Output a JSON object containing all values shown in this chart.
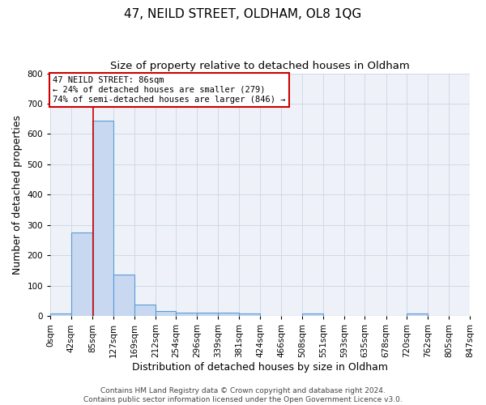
{
  "title": "47, NEILD STREET, OLDHAM, OL8 1QG",
  "subtitle": "Size of property relative to detached houses in Oldham",
  "xlabel": "Distribution of detached houses by size in Oldham",
  "ylabel": "Number of detached properties",
  "bin_edges": [
    0,
    42,
    85,
    127,
    169,
    212,
    254,
    296,
    339,
    381,
    424,
    466,
    508,
    551,
    593,
    635,
    678,
    720,
    762,
    805,
    847
  ],
  "bin_counts": [
    8,
    277,
    645,
    138,
    37,
    18,
    12,
    11,
    11,
    8,
    0,
    0,
    8,
    0,
    0,
    0,
    0,
    8,
    0,
    0
  ],
  "bar_color": "#c8d8f0",
  "bar_edge_color": "#5b9bd5",
  "property_size": 86,
  "red_line_color": "#cc0000",
  "annotation_line1": "47 NEILD STREET: 86sqm",
  "annotation_line2": "← 24% of detached houses are smaller (279)",
  "annotation_line3": "74% of semi-detached houses are larger (846) →",
  "annotation_box_color": "#ffffff",
  "annotation_box_edge": "#cc0000",
  "ylim": [
    0,
    800
  ],
  "yticks": [
    0,
    100,
    200,
    300,
    400,
    500,
    600,
    700,
    800
  ],
  "grid_color": "#d0d8e8",
  "bg_color": "#eef2f8",
  "footer_text": "Contains HM Land Registry data © Crown copyright and database right 2024.\nContains public sector information licensed under the Open Government Licence v3.0.",
  "title_fontsize": 11,
  "subtitle_fontsize": 9.5,
  "xlabel_fontsize": 9,
  "ylabel_fontsize": 9,
  "tick_fontsize": 7.5,
  "footer_fontsize": 6.5
}
